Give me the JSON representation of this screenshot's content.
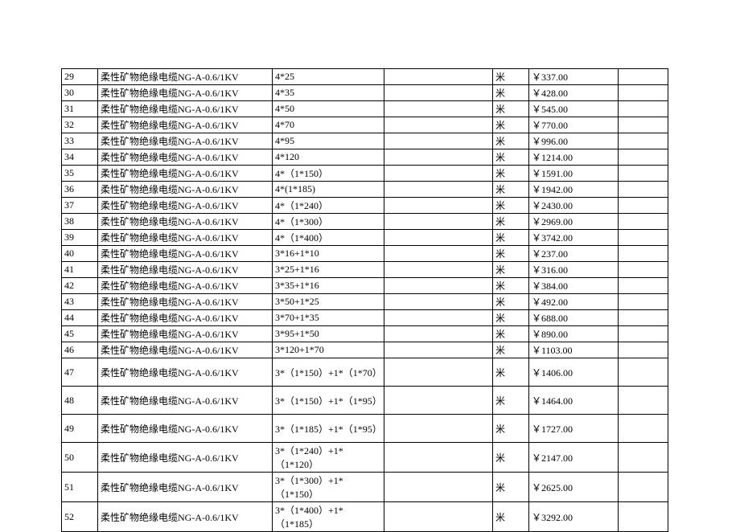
{
  "table": {
    "rows": [
      {
        "n": "29",
        "desc": "柔性矿物绝缘电缆NG-A-0.6/1KV",
        "spec": "4*25",
        "blank": "",
        "unit": "米",
        "price": "￥337.00",
        "last": "",
        "tall": false
      },
      {
        "n": "30",
        "desc": "柔性矿物绝缘电缆NG-A-0.6/1KV",
        "spec": "4*35",
        "blank": "",
        "unit": "米",
        "price": "￥428.00",
        "last": "",
        "tall": false
      },
      {
        "n": "31",
        "desc": "柔性矿物绝缘电缆NG-A-0.6/1KV",
        "spec": "4*50",
        "blank": "",
        "unit": "米",
        "price": "￥545.00",
        "last": "",
        "tall": false
      },
      {
        "n": "32",
        "desc": "柔性矿物绝缘电缆NG-A-0.6/1KV",
        "spec": "4*70",
        "blank": "",
        "unit": "米",
        "price": "￥770.00",
        "last": "",
        "tall": false
      },
      {
        "n": "33",
        "desc": "柔性矿物绝缘电缆NG-A-0.6/1KV",
        "spec": "4*95",
        "blank": "",
        "unit": "米",
        "price": "￥996.00",
        "last": "",
        "tall": false
      },
      {
        "n": "34",
        "desc": "柔性矿物绝缘电缆NG-A-0.6/1KV",
        "spec": "4*120",
        "blank": "",
        "unit": "米",
        "price": "￥1214.00",
        "last": "",
        "tall": false
      },
      {
        "n": "35",
        "desc": "柔性矿物绝缘电缆NG-A-0.6/1KV",
        "spec": "4*（1*150）",
        "blank": "",
        "unit": "米",
        "price": "￥1591.00",
        "last": "",
        "tall": false
      },
      {
        "n": "36",
        "desc": "柔性矿物绝缘电缆NG-A-0.6/1KV",
        "spec": "4*(1*185)",
        "blank": "",
        "unit": "米",
        "price": "￥1942.00",
        "last": "",
        "tall": false
      },
      {
        "n": "37",
        "desc": "柔性矿物绝缘电缆NG-A-0.6/1KV",
        "spec": "4*（1*240）",
        "blank": "",
        "unit": "米",
        "price": "￥2430.00",
        "last": "",
        "tall": false
      },
      {
        "n": "38",
        "desc": "柔性矿物绝缘电缆NG-A-0.6/1KV",
        "spec": "4*（1*300）",
        "blank": "",
        "unit": "米",
        "price": "￥2969.00",
        "last": "",
        "tall": false
      },
      {
        "n": "39",
        "desc": "柔性矿物绝缘电缆NG-A-0.6/1KV",
        "spec": "4*（1*400）",
        "blank": "",
        "unit": "米",
        "price": "￥3742.00",
        "last": "",
        "tall": false
      },
      {
        "n": "40",
        "desc": "柔性矿物绝缘电缆NG-A-0.6/1KV",
        "spec": "3*16+1*10",
        "blank": "",
        "unit": "米",
        "price": "￥237.00",
        "last": "",
        "tall": false
      },
      {
        "n": "41",
        "desc": "柔性矿物绝缘电缆NG-A-0.6/1KV",
        "spec": "3*25+1*16",
        "blank": "",
        "unit": "米",
        "price": "￥316.00",
        "last": "",
        "tall": false
      },
      {
        "n": "42",
        "desc": "柔性矿物绝缘电缆NG-A-0.6/1KV",
        "spec": "3*35+1*16",
        "blank": "",
        "unit": "米",
        "price": "￥384.00",
        "last": "",
        "tall": false
      },
      {
        "n": "43",
        "desc": "柔性矿物绝缘电缆NG-A-0.6/1KV",
        "spec": "3*50+1*25",
        "blank": "",
        "unit": "米",
        "price": "￥492.00",
        "last": "",
        "tall": false
      },
      {
        "n": "44",
        "desc": "柔性矿物绝缘电缆NG-A-0.6/1KV",
        "spec": "3*70+1*35",
        "blank": "",
        "unit": "米",
        "price": "￥688.00",
        "last": "",
        "tall": false
      },
      {
        "n": "45",
        "desc": "柔性矿物绝缘电缆NG-A-0.6/1KV",
        "spec": "3*95+1*50",
        "blank": "",
        "unit": "米",
        "price": "￥890.00",
        "last": "",
        "tall": false
      },
      {
        "n": "46",
        "desc": "柔性矿物绝缘电缆NG-A-0.6/1KV",
        "spec": "3*120+1*70",
        "blank": "",
        "unit": "米",
        "price": "￥1103.00",
        "last": "",
        "tall": false
      },
      {
        "n": "47",
        "desc": "柔性矿物绝缘电缆NG-A-0.6/1KV",
        "spec": "3*（1*150）+1*（1*70）",
        "blank": "",
        "unit": "米",
        "price": "￥1406.00",
        "last": "",
        "tall": true
      },
      {
        "n": "48",
        "desc": "柔性矿物绝缘电缆NG-A-0.6/1KV",
        "spec": "3*（1*150）+1*（1*95）",
        "blank": "",
        "unit": "米",
        "price": "￥1464.00",
        "last": "",
        "tall": true
      },
      {
        "n": "49",
        "desc": "柔性矿物绝缘电缆NG-A-0.6/1KV",
        "spec": "3*（1*185）+1*（1*95）",
        "blank": "",
        "unit": "米",
        "price": "￥1727.00",
        "last": "",
        "tall": true
      },
      {
        "n": "50",
        "desc": "柔性矿物绝缘电缆NG-A-0.6/1KV",
        "spec": "3*（1*240）+1*（1*120）",
        "blank": "",
        "unit": "米",
        "price": "￥2147.00",
        "last": "",
        "tall": true
      },
      {
        "n": "51",
        "desc": "柔性矿物绝缘电缆NG-A-0.6/1KV",
        "spec": "3*（1*300）+1*（1*150）",
        "blank": "",
        "unit": "米",
        "price": "￥2625.00",
        "last": "",
        "tall": true
      },
      {
        "n": "52",
        "desc": "柔性矿物绝缘电缆NG-A-0.6/1KV",
        "spec": "3*（1*400）+1*（1*185）",
        "blank": "",
        "unit": "米",
        "price": "￥3292.00",
        "last": "",
        "tall": true
      }
    ]
  }
}
